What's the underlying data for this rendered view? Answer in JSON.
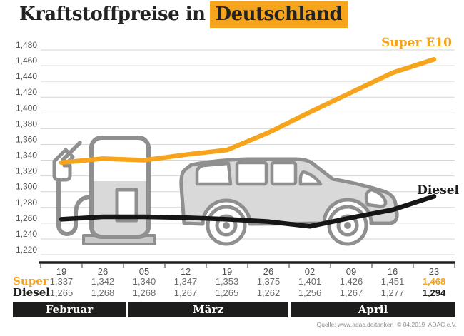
{
  "title": {
    "text_prefix": "Kraftstoffpreise in",
    "text_highlight": "Deutschland"
  },
  "source_note": "Quelle: www.adac.de/tanken  © 04.2019  ADAC e.V.",
  "colors": {
    "accent_orange": "#F5A41C",
    "diesel_black": "#161615",
    "grid_gray": "#d6d6d6",
    "axis_black": "#1d1d1b",
    "label_gray": "#4f4f4f",
    "value_gray": "#6b6b6b",
    "icon_fill": "#d9d9d9",
    "icon_stroke": "#8f8f8f",
    "month_bar_bg": "#1d1d1b"
  },
  "chart_data": {
    "type": "line",
    "title": "Kraftstoffpreise in Deutschland",
    "x_labels": [
      "19",
      "26",
      "05",
      "12",
      "19",
      "26",
      "02",
      "09",
      "16",
      "23"
    ],
    "months": [
      {
        "label": "Februar",
        "start_col": 0,
        "end_col": 1
      },
      {
        "label": "März",
        "start_col": 2,
        "end_col": 5
      },
      {
        "label": "April",
        "start_col": 6,
        "end_col": 9
      }
    ],
    "y_ticks": [
      1.48,
      1.46,
      1.44,
      1.42,
      1.4,
      1.38,
      1.36,
      1.34,
      1.32,
      1.3,
      1.28,
      1.26,
      1.24,
      1.22
    ],
    "ylim": [
      1.21,
      1.49
    ],
    "grid": true,
    "legend_position": "inline-right",
    "series": [
      {
        "name": "Super E10",
        "key": "super",
        "table_header": "Super",
        "color": "#F5A41C",
        "values": [
          1.337,
          1.342,
          1.34,
          1.347,
          1.353,
          1.375,
          1.401,
          1.426,
          1.451,
          1.468
        ]
      },
      {
        "name": "Diesel",
        "key": "diesel",
        "table_header": "Diesel",
        "color": "#161615",
        "values": [
          1.265,
          1.268,
          1.268,
          1.267,
          1.265,
          1.262,
          1.256,
          1.267,
          1.277,
          1.294
        ]
      }
    ]
  }
}
